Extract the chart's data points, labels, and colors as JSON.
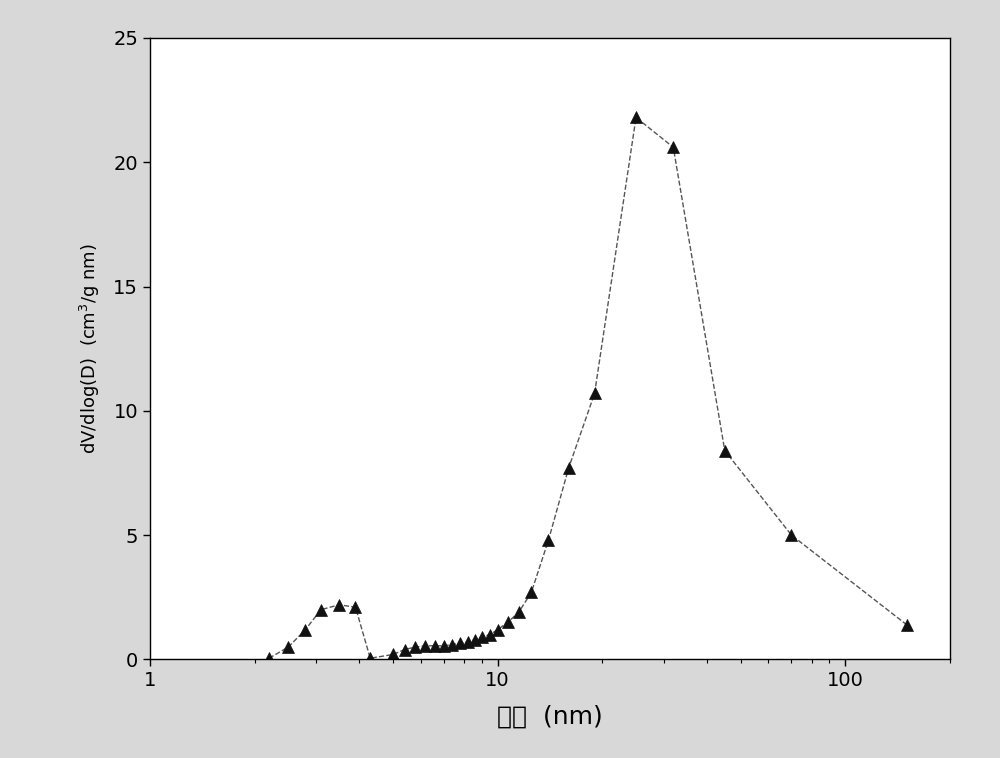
{
  "x": [
    2.2,
    2.5,
    2.8,
    3.1,
    3.5,
    3.9,
    4.3,
    5.0,
    5.4,
    5.8,
    6.2,
    6.6,
    7.0,
    7.4,
    7.8,
    8.2,
    8.6,
    9.0,
    9.5,
    10.0,
    10.7,
    11.5,
    12.5,
    14.0,
    16.0,
    19.0,
    25.0,
    32.0,
    45.0,
    70.0,
    150.0
  ],
  "y": [
    0.05,
    0.5,
    1.2,
    2.0,
    2.2,
    2.1,
    0.05,
    0.2,
    0.4,
    0.5,
    0.55,
    0.55,
    0.55,
    0.6,
    0.65,
    0.7,
    0.8,
    0.9,
    1.0,
    1.2,
    1.5,
    1.9,
    2.7,
    4.8,
    7.7,
    10.7,
    21.8,
    20.6,
    8.4,
    5.0,
    1.4
  ],
  "xlim": [
    1,
    200
  ],
  "ylim": [
    0,
    25
  ],
  "yticks": [
    0,
    5,
    10,
    15,
    20,
    25
  ],
  "xtick_labels": [
    "1",
    "10",
    "100"
  ],
  "xtick_vals": [
    1,
    10,
    100
  ],
  "xlabel_cn": "孔径",
  "xlabel_en": "(nm)",
  "ylabel_line1": "dV/dlog(D)  (cm",
  "ylabel_line2": "3",
  "ylabel_line3": "/g nm)",
  "line_color": "#555555",
  "marker_color": "#111111",
  "bg_color": "#ffffff",
  "outer_bg": "#d8d8d8",
  "marker": "^",
  "markersize": 8,
  "linewidth": 1.0
}
